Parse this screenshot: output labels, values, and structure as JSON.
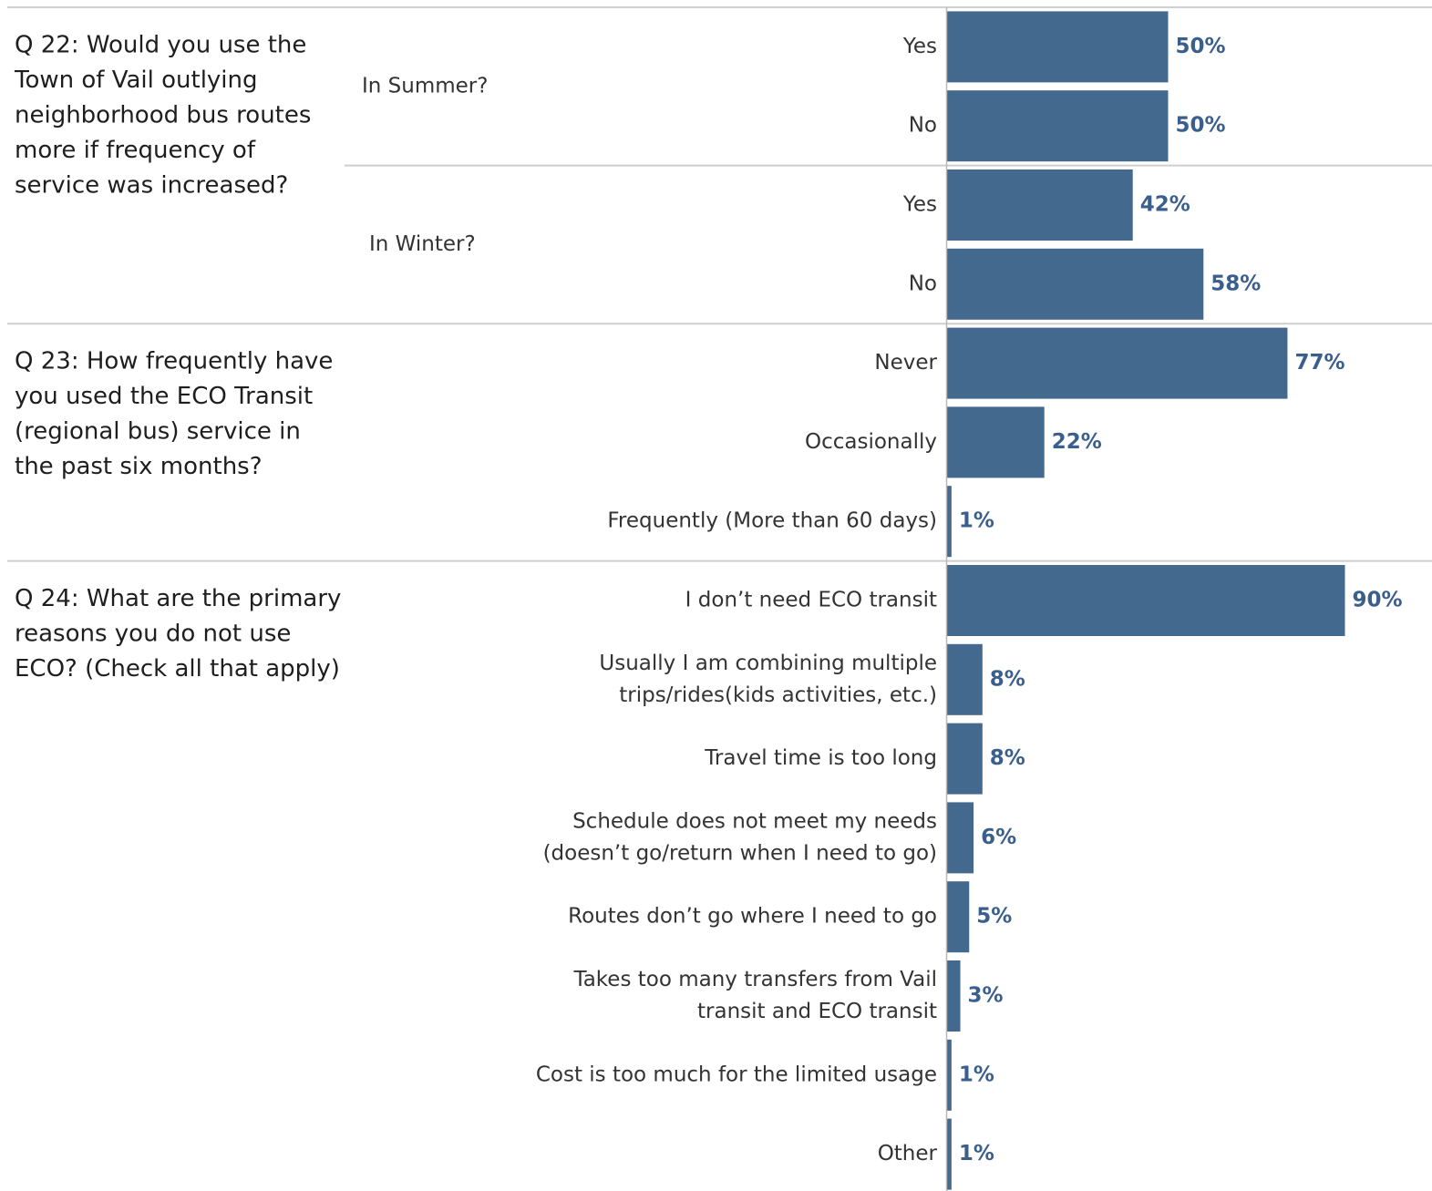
{
  "chart_data": {
    "type": "bar",
    "orientation": "horizontal",
    "bar_color": "#44698f",
    "label_color": "#3a5f8c",
    "grid": false,
    "xlim": [
      0,
      100
    ],
    "value_format": "percent",
    "groups": [
      {
        "question": "Q 22: Would you use the Town of Vail outlying neighborhood bus routes more if frequency of service was increased?",
        "question_lines": [
          "Q 22: Would you use the",
          "Town of Vail outlying",
          "neighborhood bus routes",
          "more if frequency of",
          "service was increased?"
        ],
        "subgroups": [
          {
            "label": "In Summer?",
            "categories": [
              {
                "label": "Yes",
                "lines": [
                  "Yes"
                ],
                "value": 50
              },
              {
                "label": "No",
                "lines": [
                  "No"
                ],
                "value": 50
              }
            ]
          },
          {
            "label": "In Winter?",
            "categories": [
              {
                "label": "Yes",
                "lines": [
                  "Yes"
                ],
                "value": 42
              },
              {
                "label": "No",
                "lines": [
                  "No"
                ],
                "value": 58
              }
            ]
          }
        ]
      },
      {
        "question": "Q 23: How frequently have you used the ECO Transit (regional bus) service in the past six months?",
        "question_lines": [
          "Q 23: How frequently have",
          "you used the ECO Transit",
          "(regional bus) service in",
          "the past six months?"
        ],
        "subgroups": [
          {
            "label": "",
            "categories": [
              {
                "label": "Never",
                "lines": [
                  "Never"
                ],
                "value": 77
              },
              {
                "label": "Occasionally",
                "lines": [
                  "Occasionally"
                ],
                "value": 22
              },
              {
                "label": "Frequently (More than 60 days)",
                "lines": [
                  "Frequently (More than 60 days)"
                ],
                "value": 1
              }
            ]
          }
        ]
      },
      {
        "question": "Q 24: What are the primary reasons you do not use ECO? (Check all that apply)",
        "question_lines": [
          "Q 24: What are the primary",
          "reasons you do not use",
          "ECO? (Check all that apply)"
        ],
        "subgroups": [
          {
            "label": "",
            "categories": [
              {
                "label": "I don’t need ECO transit",
                "lines": [
                  "I don’t need ECO transit"
                ],
                "value": 90
              },
              {
                "label": "Usually I am combining multiple trips/rides(kids activities, etc.)",
                "lines": [
                  "Usually I am combining multiple",
                  "trips/rides(kids activities, etc.)"
                ],
                "value": 8
              },
              {
                "label": "Travel time is too long",
                "lines": [
                  "Travel time is too long"
                ],
                "value": 8
              },
              {
                "label": "Schedule does not meet my needs (doesn’t go/return when I need to go)",
                "lines": [
                  "Schedule does not meet my needs",
                  "(doesn’t go/return when I need to go)"
                ],
                "value": 6
              },
              {
                "label": "Routes don’t go where I need to go",
                "lines": [
                  "Routes don’t go where I need to go"
                ],
                "value": 5
              },
              {
                "label": "Takes too many transfers from Vail transit and ECO transit",
                "lines": [
                  "Takes too many transfers from Vail",
                  "transit and ECO transit"
                ],
                "value": 3
              },
              {
                "label": "Cost is too much for the limited usage",
                "lines": [
                  "Cost is too much for the limited usage"
                ],
                "value": 1
              },
              {
                "label": "Other",
                "lines": [
                  "Other"
                ],
                "value": 1
              }
            ]
          }
        ]
      }
    ]
  }
}
